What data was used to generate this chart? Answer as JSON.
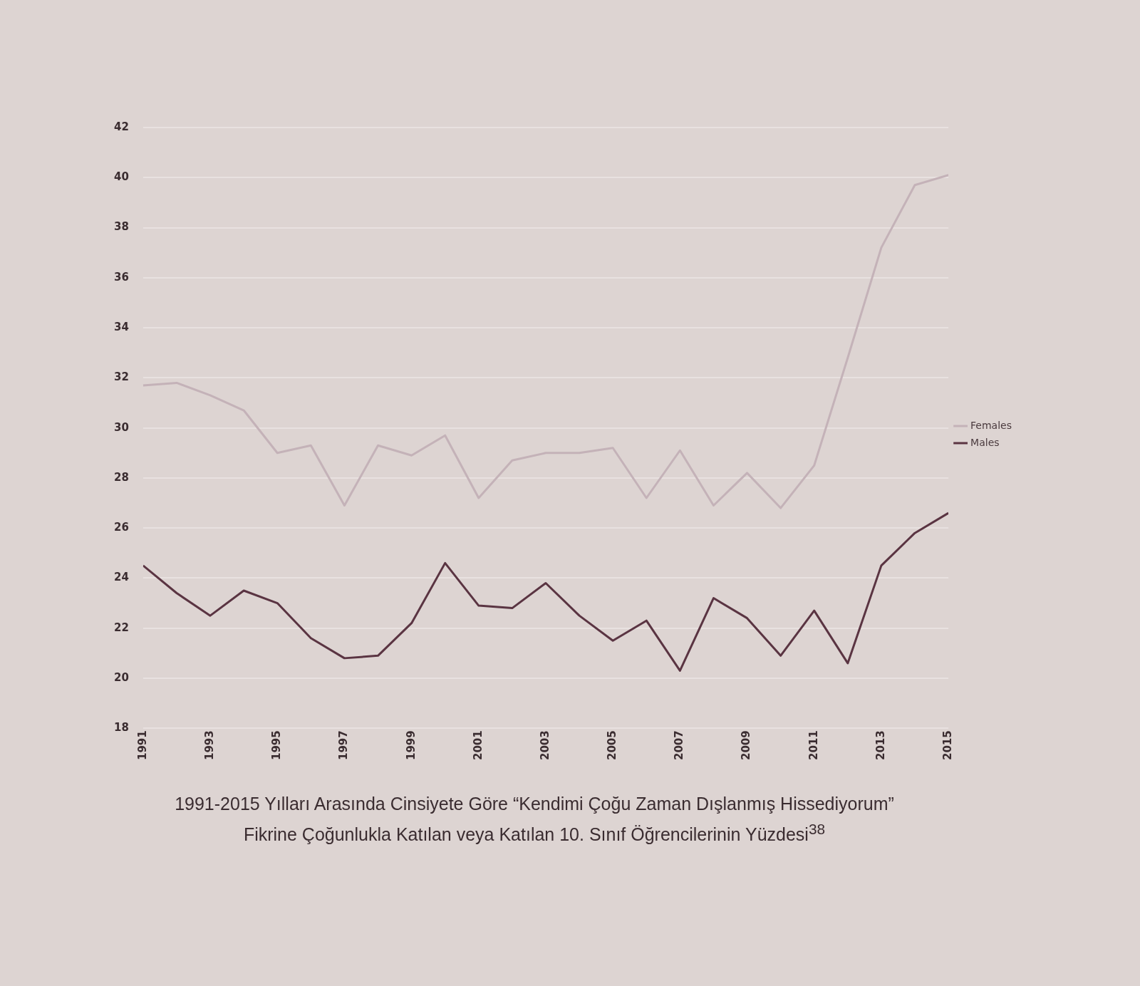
{
  "chart_data": {
    "type": "line",
    "title": "1991-2015 Yılları Arasında Cinsiyete Göre “Kendimi Çoğu Zaman Dışlanmış Hissediyorum”\nFikrine Çoğunlukla Katılan veya Katılan 10. Sınıf Öğrencilerinin Yüzdesi$^{38}$",
    "x": [
      1991,
      1992,
      1993,
      1994,
      1995,
      1996,
      1997,
      1998,
      1999,
      2000,
      2001,
      2002,
      2003,
      2004,
      2005,
      2006,
      2007,
      2008,
      2009,
      2010,
      2011,
      2012,
      2013,
      2014,
      2015
    ],
    "series": [
      {
        "name": "Females",
        "color": "#c4b2b8",
        "values": [
          31.7,
          31.8,
          31.3,
          30.7,
          29.0,
          29.3,
          26.9,
          29.3,
          28.9,
          29.7,
          27.2,
          28.7,
          29.0,
          29.0,
          29.2,
          27.2,
          29.1,
          26.9,
          28.2,
          26.8,
          28.5,
          32.8,
          37.2,
          39.7,
          40.1
        ]
      },
      {
        "name": "Males",
        "color": "#5a3442",
        "values": [
          24.5,
          23.4,
          22.5,
          23.5,
          23.0,
          21.6,
          20.8,
          20.9,
          22.2,
          24.6,
          22.9,
          22.8,
          23.8,
          22.5,
          21.5,
          22.3,
          20.3,
          23.2,
          22.4,
          20.9,
          22.7,
          20.6,
          24.5,
          25.8,
          26.6
        ]
      }
    ],
    "xlim": [
      1991,
      2015
    ],
    "xticks": [
      1991,
      1993,
      1995,
      1997,
      1999,
      2001,
      2003,
      2005,
      2007,
      2009,
      2011,
      2013,
      2015
    ],
    "ylim": [
      18,
      42
    ],
    "yticks": [
      18,
      20,
      22,
      24,
      26,
      28,
      30,
      32,
      34,
      36,
      38,
      40,
      42
    ],
    "grid": "y",
    "legend": "right",
    "marker": "none",
    "line_style": "solid"
  }
}
